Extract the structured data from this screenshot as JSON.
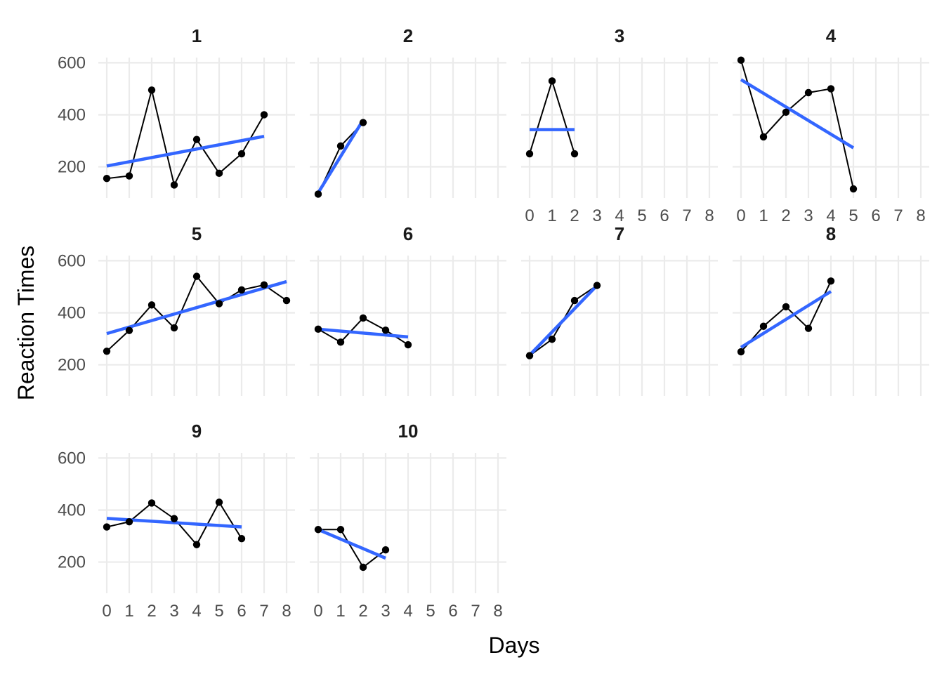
{
  "colors": {
    "background": "#ffffff",
    "grid": "#ebebeb",
    "data_line": "#000000",
    "point": "#000000",
    "fit_line": "#3366ff",
    "text": "#4d4d4d",
    "strip_text": "#1a1a1a"
  },
  "chart_data": {
    "type": "line",
    "layout": "facet-grid",
    "xlabel": "Days",
    "ylabel": "Reaction Times",
    "x_ticks": [
      0,
      1,
      2,
      3,
      4,
      5,
      6,
      7,
      8
    ],
    "y_ticks": [
      200,
      400,
      600
    ],
    "xlim": [
      0,
      8
    ],
    "ylim": [
      80,
      620
    ],
    "grid": true,
    "smooth": "linear fit",
    "panels": [
      {
        "label": "1",
        "x": [
          0,
          1,
          2,
          3,
          4,
          5,
          6,
          7
        ],
        "y": [
          155,
          165,
          495,
          130,
          305,
          175,
          250,
          400
        ],
        "fit": [
          203,
          317
        ]
      },
      {
        "label": "2",
        "x": [
          0,
          1,
          2
        ],
        "y": [
          95,
          280,
          370
        ],
        "fit": [
          100,
          380
        ]
      },
      {
        "label": "3",
        "x": [
          0,
          1,
          2
        ],
        "y": [
          250,
          530,
          250
        ],
        "fit": [
          343,
          343
        ]
      },
      {
        "label": "4",
        "x": [
          0,
          1,
          2,
          3,
          4,
          5
        ],
        "y": [
          610,
          315,
          410,
          485,
          500,
          115
        ],
        "fit": [
          535,
          273
        ]
      },
      {
        "label": "5",
        "x": [
          0,
          1,
          2,
          3,
          4,
          5,
          6,
          7,
          8
        ],
        "y": [
          252,
          332,
          430,
          342,
          540,
          435,
          488,
          507,
          447
        ],
        "fit": [
          320,
          520
        ]
      },
      {
        "label": "6",
        "x": [
          0,
          1,
          2,
          3,
          4
        ],
        "y": [
          337,
          287,
          380,
          333,
          277
        ],
        "fit": [
          337,
          307
        ]
      },
      {
        "label": "7",
        "x": [
          0,
          1,
          2,
          3
        ],
        "y": [
          235,
          298,
          447,
          505
        ],
        "fit": [
          237,
          505
        ]
      },
      {
        "label": "8",
        "x": [
          0,
          1,
          2,
          3,
          4
        ],
        "y": [
          250,
          348,
          423,
          340,
          522
        ],
        "fit": [
          267,
          482
        ]
      },
      {
        "label": "9",
        "x": [
          0,
          1,
          2,
          3,
          4,
          5,
          6
        ],
        "y": [
          335,
          355,
          427,
          367,
          267,
          430,
          290
        ],
        "fit": [
          368,
          335
        ]
      },
      {
        "label": "10",
        "x": [
          0,
          1,
          2,
          3
        ],
        "y": [
          325,
          325,
          180,
          247
        ],
        "fit": [
          325,
          215
        ]
      }
    ]
  }
}
